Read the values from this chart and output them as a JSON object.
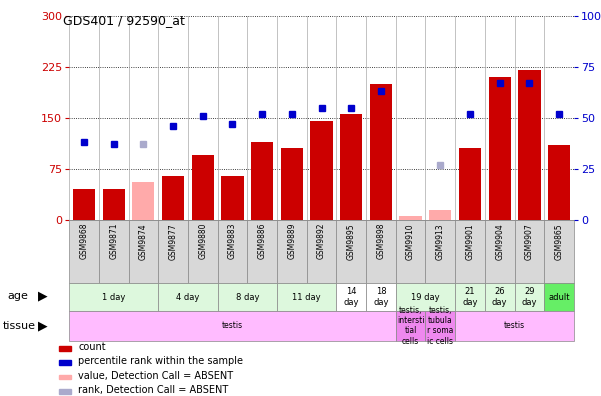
{
  "title": "GDS401 / 92590_at",
  "samples": [
    "GSM9868",
    "GSM9871",
    "GSM9874",
    "GSM9877",
    "GSM9880",
    "GSM9883",
    "GSM9886",
    "GSM9889",
    "GSM9892",
    "GSM9895",
    "GSM9898",
    "GSM9910",
    "GSM9913",
    "GSM9901",
    "GSM9904",
    "GSM9907",
    "GSM9865"
  ],
  "count_values": [
    45,
    45,
    null,
    65,
    95,
    65,
    115,
    105,
    145,
    155,
    200,
    null,
    null,
    105,
    210,
    220,
    110
  ],
  "count_absent": [
    null,
    null,
    55,
    null,
    null,
    null,
    null,
    null,
    null,
    null,
    null,
    5,
    15,
    null,
    null,
    null,
    null
  ],
  "percentile_values": [
    38,
    37,
    null,
    46,
    51,
    47,
    52,
    52,
    55,
    55,
    63,
    null,
    null,
    52,
    67,
    67,
    52
  ],
  "percentile_absent": [
    null,
    null,
    37,
    null,
    null,
    null,
    null,
    null,
    null,
    null,
    null,
    null,
    27,
    null,
    null,
    null,
    null
  ],
  "ylim_left": [
    0,
    300
  ],
  "ylim_right": [
    0,
    100
  ],
  "yticks_left": [
    0,
    75,
    150,
    225,
    300
  ],
  "yticks_right": [
    0,
    25,
    50,
    75,
    100
  ],
  "ages": [
    {
      "label": "1 day",
      "cols": [
        0,
        1,
        2
      ],
      "color": "#ddf8dd"
    },
    {
      "label": "4 day",
      "cols": [
        3,
        4
      ],
      "color": "#ddf8dd"
    },
    {
      "label": "8 day",
      "cols": [
        5,
        6
      ],
      "color": "#ddf8dd"
    },
    {
      "label": "11 day",
      "cols": [
        7,
        8
      ],
      "color": "#ddf8dd"
    },
    {
      "label": "14\nday",
      "cols": [
        9
      ],
      "color": "#ffffff"
    },
    {
      "label": "18\nday",
      "cols": [
        10
      ],
      "color": "#ffffff"
    },
    {
      "label": "19 day",
      "cols": [
        11,
        12
      ],
      "color": "#ddf8dd"
    },
    {
      "label": "21\nday",
      "cols": [
        13
      ],
      "color": "#ddf8dd"
    },
    {
      "label": "26\nday",
      "cols": [
        14
      ],
      "color": "#ddf8dd"
    },
    {
      "label": "29\nday",
      "cols": [
        15
      ],
      "color": "#ddf8dd"
    },
    {
      "label": "adult",
      "cols": [
        16
      ],
      "color": "#66ee66"
    }
  ],
  "tissues": [
    {
      "label": "testis",
      "cols": [
        0,
        1,
        2,
        3,
        4,
        5,
        6,
        7,
        8,
        9,
        10
      ],
      "color": "#ffbbff"
    },
    {
      "label": "testis,\nintersti\ntial\ncells",
      "cols": [
        11
      ],
      "color": "#ee88ee"
    },
    {
      "label": "testis,\ntubula\nr soma\nic cells",
      "cols": [
        12
      ],
      "color": "#ee88ee"
    },
    {
      "label": "testis",
      "cols": [
        13,
        14,
        15,
        16
      ],
      "color": "#ffbbff"
    }
  ],
  "bar_color": "#cc0000",
  "bar_absent_color": "#ffaaaa",
  "dot_color": "#0000cc",
  "dot_absent_color": "#aaaacc",
  "axis_label_left_color": "#cc0000",
  "axis_label_right_color": "#0000cc",
  "legend_items": [
    {
      "label": "count",
      "color": "#cc0000"
    },
    {
      "label": "percentile rank within the sample",
      "color": "#0000cc"
    },
    {
      "label": "value, Detection Call = ABSENT",
      "color": "#ffaaaa"
    },
    {
      "label": "rank, Detection Call = ABSENT",
      "color": "#aaaacc"
    }
  ],
  "sample_bg_color": "#d8d8d8"
}
